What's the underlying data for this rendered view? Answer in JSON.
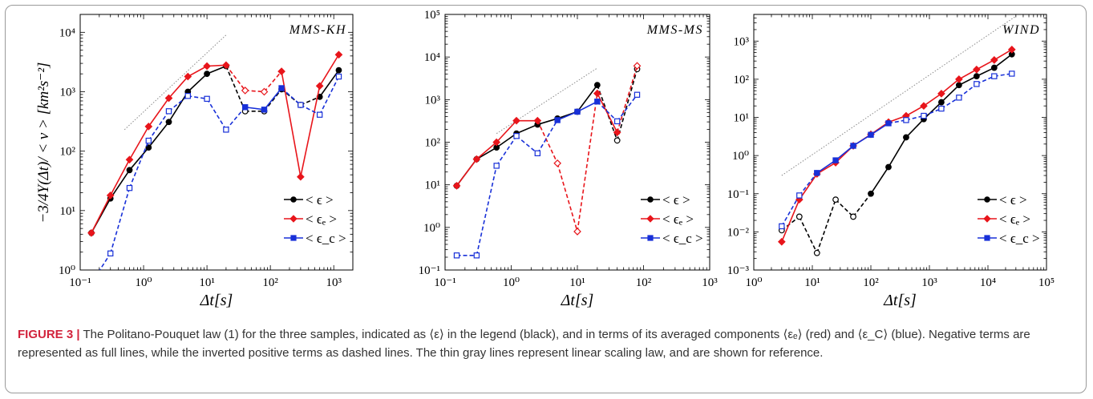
{
  "figure": {
    "ylabel": "−3/4Y(Δt)/ < v > [km²s⁻²]",
    "caption_label": "FIGURE 3 |",
    "caption_text": " The Politano-Pouquet law (1) for the three samples, indicated as ⟨ε⟩ in the legend (black), and in terms of its averaged components ⟨εₑ⟩ (red) and ⟨ε_C⟩ (blue). Negative terms are represented as full lines, while the inverted positive terms as dashed lines. The thin gray lines represent linear scaling law, and are shown for reference."
  },
  "colors": {
    "eps": "#000000",
    "eps_e": "#e8151b",
    "eps_c": "#1830d8",
    "ref": "#8a8a8a"
  },
  "legend": [
    "< ϵ >",
    "< ϵₑ >",
    "< ϵ_c >"
  ],
  "chart_data": [
    {
      "type": "line",
      "title": "MMS-KH",
      "xlabel": "Δt[s]",
      "xscale": "log",
      "yscale": "log",
      "xlim": [
        0.1,
        2000
      ],
      "ylim": [
        1,
        20000
      ],
      "xticks": [
        "10⁻¹",
        "10⁰",
        "10¹",
        "10²",
        "10³"
      ],
      "yticks": [
        "10⁰",
        "10¹",
        "10²",
        "10³",
        "10⁴"
      ],
      "reference_line": [
        [
          0.5,
          230
        ],
        [
          20,
          9000
        ]
      ],
      "series": [
        {
          "name": "< ϵ >",
          "x": [
            0.15,
            0.3,
            0.6,
            1.2,
            2.5,
            5,
            10,
            20,
            40,
            80,
            150,
            300,
            600,
            1200
          ],
          "y": [
            4.2,
            16,
            48,
            115,
            310,
            1000,
            2000,
            2700,
            470,
            470,
            1100,
            600,
            820,
            2300
          ],
          "positive": [
            false,
            false,
            false,
            false,
            false,
            false,
            false,
            false,
            true,
            true,
            false,
            true,
            false,
            false
          ]
        },
        {
          "name": "< ϵₑ >",
          "x": [
            0.15,
            0.3,
            0.6,
            1.2,
            2.5,
            5,
            10,
            20,
            40,
            80,
            150,
            300,
            600,
            1200
          ],
          "y": [
            4.2,
            18,
            72,
            260,
            780,
            1800,
            2700,
            2800,
            1050,
            1000,
            2200,
            37,
            1250,
            4200
          ],
          "positive": [
            false,
            false,
            false,
            false,
            false,
            false,
            false,
            false,
            true,
            true,
            false,
            false,
            false,
            false
          ]
        },
        {
          "name": "< ϵ_c >",
          "x": [
            0.15,
            0.3,
            0.6,
            1.2,
            2.5,
            5,
            10,
            20,
            40,
            80,
            150,
            300,
            600,
            1200
          ],
          "y": [
            0.6,
            1.9,
            24,
            150,
            470,
            850,
            760,
            230,
            550,
            500,
            1150,
            600,
            410,
            1800
          ],
          "positive": [
            true,
            true,
            true,
            true,
            true,
            true,
            true,
            true,
            false,
            false,
            false,
            true,
            true,
            true
          ]
        }
      ]
    },
    {
      "type": "line",
      "title": "MMS-MS",
      "xlabel": "Δt[s]",
      "xscale": "log",
      "yscale": "log",
      "xlim": [
        0.1,
        1000
      ],
      "ylim": [
        0.1,
        100000
      ],
      "xticks": [
        "10⁻¹",
        "10⁰",
        "10¹",
        "10²",
        "10³"
      ],
      "yticks": [
        "10⁻¹",
        "10⁰",
        "10¹",
        "10²",
        "10³",
        "10⁴",
        "10⁵"
      ],
      "reference_line": [
        [
          0.6,
          160
        ],
        [
          20,
          5500
        ]
      ],
      "series": [
        {
          "name": "< ϵ >",
          "x": [
            0.15,
            0.3,
            0.6,
            1.2,
            2.5,
            5,
            10,
            20,
            40,
            80
          ],
          "y": [
            9.5,
            40,
            75,
            160,
            260,
            360,
            520,
            2200,
            110,
            5200
          ],
          "positive": [
            false,
            false,
            false,
            false,
            false,
            false,
            false,
            false,
            true,
            true
          ]
        },
        {
          "name": "< ϵₑ >",
          "x": [
            0.15,
            0.3,
            0.6,
            1.2,
            2.5,
            5,
            10,
            20,
            40,
            80
          ],
          "y": [
            9.5,
            40,
            100,
            320,
            320,
            32,
            0.8,
            1400,
            170,
            6200
          ],
          "positive": [
            false,
            false,
            false,
            false,
            false,
            true,
            true,
            false,
            false,
            true
          ]
        },
        {
          "name": "< ϵ_c >",
          "x": [
            0.15,
            0.3,
            0.6,
            1.2,
            2.5,
            5,
            10,
            20,
            40,
            80
          ],
          "y": [
            0.22,
            0.22,
            28,
            140,
            55,
            330,
            520,
            900,
            310,
            1300
          ],
          "positive": [
            true,
            true,
            true,
            true,
            true,
            false,
            false,
            false,
            true,
            true
          ]
        }
      ]
    },
    {
      "type": "line",
      "title": "WIND",
      "xlabel": "Δt[s]",
      "xscale": "log",
      "yscale": "log",
      "xlim": [
        1,
        100000
      ],
      "ylim": [
        0.001,
        5000
      ],
      "xticks": [
        "10⁰",
        "10¹",
        "10²",
        "10³",
        "10⁴",
        "10⁵"
      ],
      "yticks": [
        "10⁻³",
        "10⁻²",
        "10⁻¹",
        "10⁰",
        "10¹",
        "10²",
        "10³"
      ],
      "reference_line": [
        [
          3,
          0.3
        ],
        [
          30000,
          4500
        ]
      ],
      "series": [
        {
          "name": "< ϵ >",
          "x": [
            3,
            6,
            12,
            25,
            50,
            100,
            200,
            400,
            800,
            1600,
            3200,
            6400,
            12800,
            25600
          ],
          "y": [
            0.011,
            0.025,
            0.0028,
            0.07,
            0.025,
            0.1,
            0.5,
            3,
            9,
            25,
            70,
            120,
            200,
            450
          ],
          "positive": [
            true,
            true,
            true,
            true,
            true,
            false,
            false,
            false,
            false,
            false,
            false,
            false,
            false,
            false
          ]
        },
        {
          "name": "< ϵₑ >",
          "x": [
            3,
            6,
            12,
            25,
            50,
            100,
            200,
            400,
            800,
            1600,
            3200,
            6400,
            12800,
            25600
          ],
          "y": [
            0.0055,
            0.07,
            0.33,
            0.65,
            1.8,
            3.6,
            7.5,
            11,
            20,
            42,
            100,
            180,
            320,
            600
          ],
          "positive": [
            false,
            false,
            false,
            false,
            false,
            false,
            false,
            false,
            false,
            false,
            false,
            false,
            false,
            false
          ]
        },
        {
          "name": "< ϵ_c >",
          "x": [
            3,
            6,
            12,
            25,
            50,
            100,
            200,
            400,
            800,
            1600,
            3200,
            6400,
            12800,
            25600
          ],
          "y": [
            0.014,
            0.09,
            0.35,
            0.75,
            1.8,
            3.5,
            7,
            8.5,
            11,
            17,
            33,
            75,
            120,
            140
          ],
          "positive": [
            true,
            true,
            false,
            false,
            false,
            false,
            false,
            true,
            true,
            true,
            true,
            true,
            true,
            true
          ]
        }
      ]
    }
  ]
}
